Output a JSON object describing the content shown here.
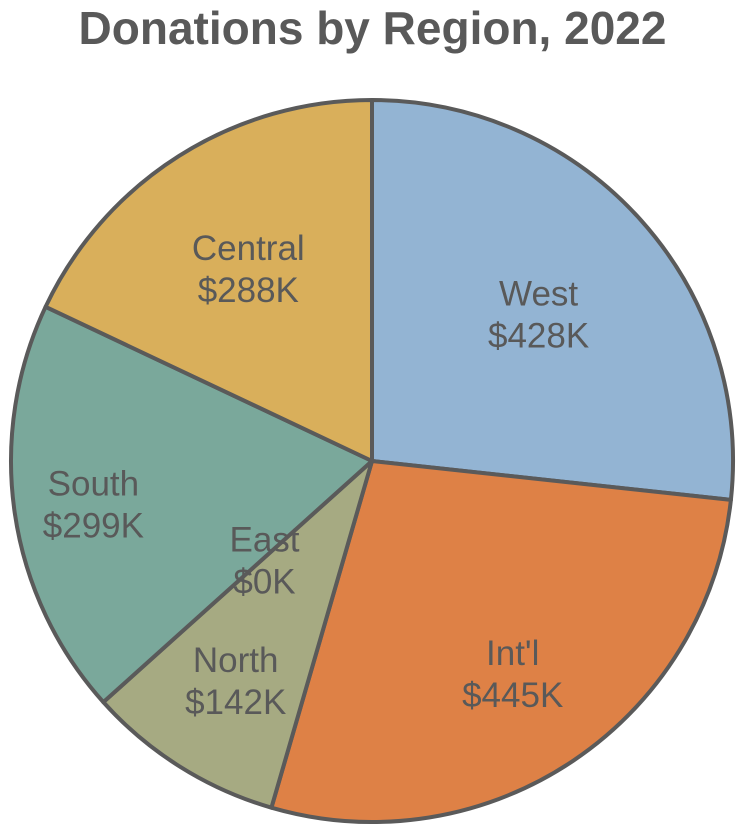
{
  "chart_data": {
    "type": "pie",
    "title": "Donations by Region, 2022",
    "slices": [
      {
        "name": "West",
        "value": 428,
        "value_label": "$428K",
        "color": "#93B4D3"
      },
      {
        "name": "Int'l",
        "value": 445,
        "value_label": "$445K",
        "color": "#DE8146"
      },
      {
        "name": "North",
        "value": 142,
        "value_label": "$142K",
        "color": "#A6AA82"
      },
      {
        "name": "East",
        "value": 0,
        "value_label": "$0K",
        "color": "#A6AA82"
      },
      {
        "name": "South",
        "value": 299,
        "value_label": "$299K",
        "color": "#7AA89B"
      },
      {
        "name": "Central",
        "value": 288,
        "value_label": "$288K",
        "color": "#D9AF5B"
      }
    ],
    "start_angle": "12 o'clock",
    "direction": "clockwise",
    "legend": "none",
    "unit": "USD thousands"
  }
}
